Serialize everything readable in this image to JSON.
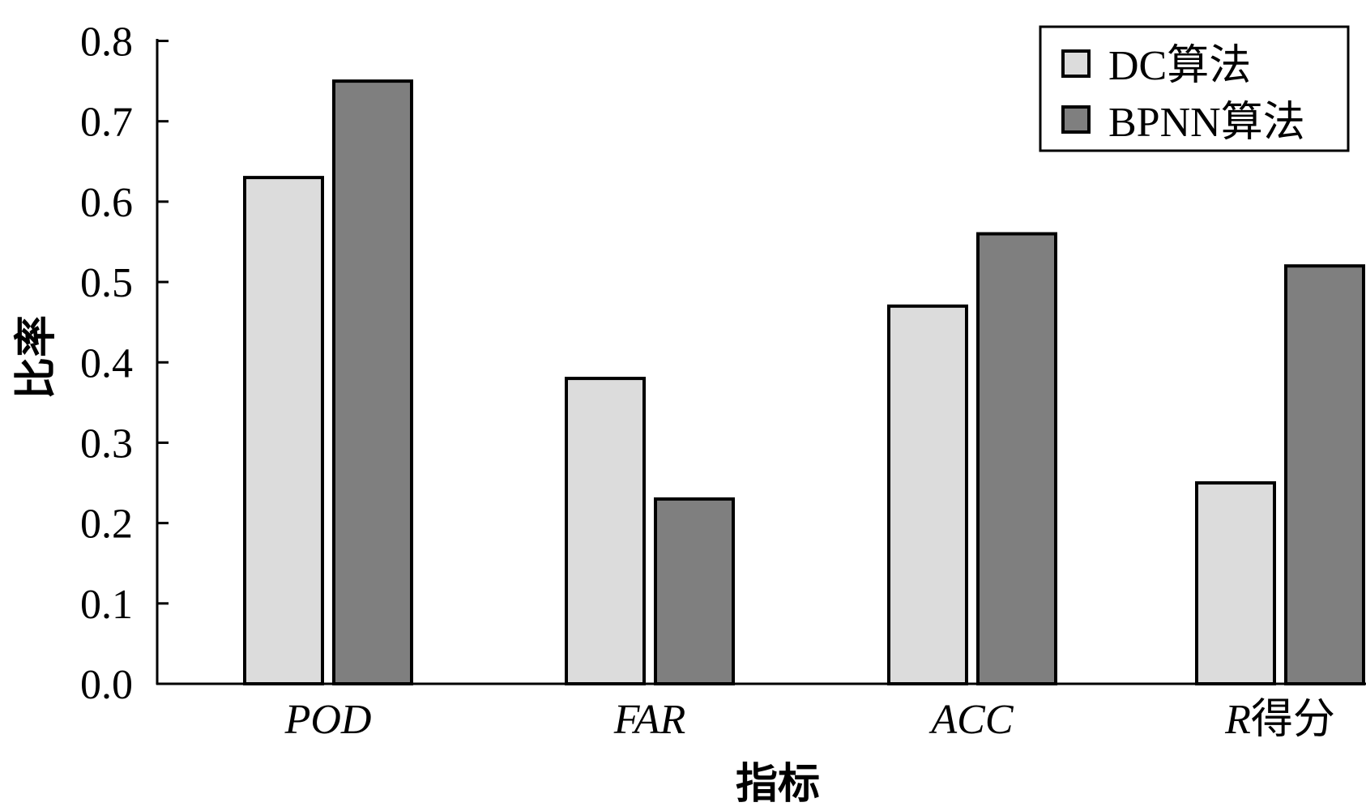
{
  "chart_data": {
    "type": "bar",
    "categories": [
      "POD",
      "FAR",
      "ACC",
      "R得分"
    ],
    "series": [
      {
        "name": "DC算法",
        "values": [
          0.63,
          0.38,
          0.47,
          0.25
        ],
        "color": "#dcdcdc"
      },
      {
        "name": "BPNN算法",
        "values": [
          0.75,
          0.23,
          0.56,
          0.52
        ],
        "color": "#7f7f7f"
      }
    ],
    "title": "",
    "xlabel": "指标",
    "ylabel": "比率",
    "ylim": [
      0.0,
      0.8
    ],
    "yticks": [
      "0.0",
      "0.1",
      "0.2",
      "0.3",
      "0.4",
      "0.5",
      "0.6",
      "0.7",
      "0.8"
    ],
    "grid": false,
    "legend_position": "top-right"
  }
}
